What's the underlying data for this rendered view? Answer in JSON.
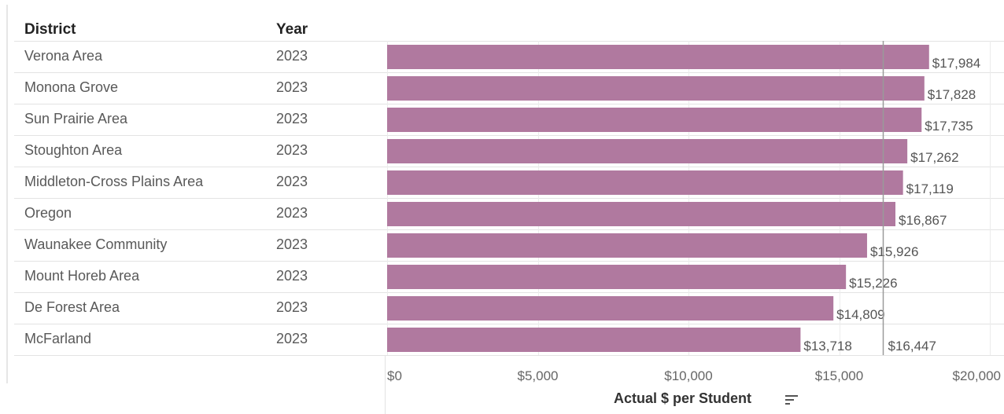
{
  "table": {
    "district_header": "District",
    "year_header": "Year"
  },
  "chart_data": {
    "type": "bar",
    "orientation": "horizontal",
    "categories": [
      "Verona Area",
      "Monona Grove",
      "Sun Prairie Area",
      "Stoughton Area",
      "Middleton-Cross Plains Area",
      "Oregon",
      "Waunakee Community",
      "Mount Horeb Area",
      "De Forest Area",
      "McFarland"
    ],
    "years": [
      "2023",
      "2023",
      "2023",
      "2023",
      "2023",
      "2023",
      "2023",
      "2023",
      "2023",
      "2023"
    ],
    "values": [
      17984,
      17828,
      17735,
      17262,
      17119,
      16867,
      15926,
      15226,
      14809,
      13718
    ],
    "value_labels": [
      "$17,984",
      "$17,828",
      "$17,735",
      "$17,262",
      "$17,119",
      "$16,867",
      "$15,926",
      "$15,226",
      "$14,809",
      "$13,718"
    ],
    "xlabel": "Actual $ per Student",
    "xlim": [
      0,
      20000
    ],
    "ticks": [
      0,
      5000,
      10000,
      15000,
      20000
    ],
    "tick_labels": [
      "$0",
      "$5,000",
      "$10,000",
      "$15,000",
      "$20,000"
    ],
    "reference_line": {
      "value": 16447,
      "label": "$16,447"
    },
    "bar_color": "#b0799f",
    "grid": true
  }
}
